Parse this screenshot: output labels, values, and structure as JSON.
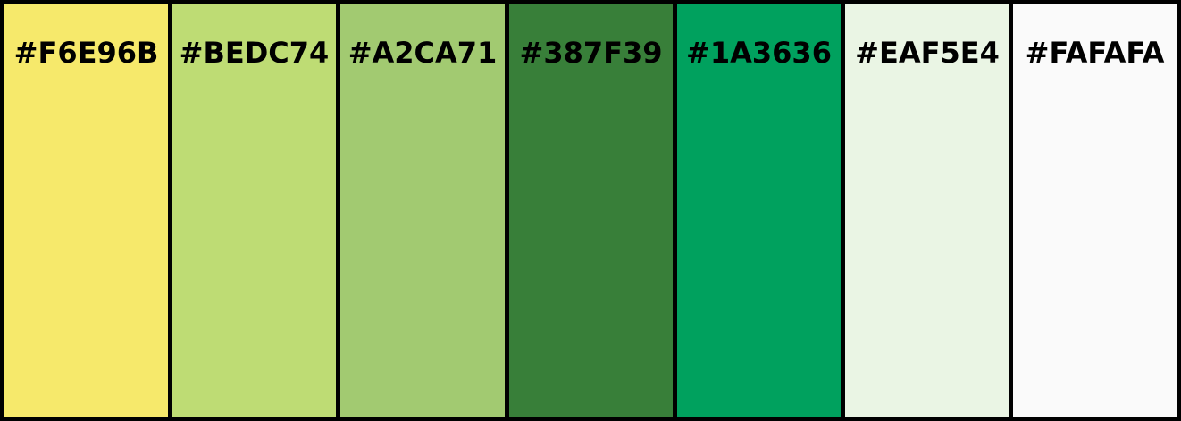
{
  "palette": {
    "swatches": [
      {
        "label": "#F6E96B",
        "color": "#F6E96B"
      },
      {
        "label": "#BEDC74",
        "color": "#BEDC74"
      },
      {
        "label": "#A2CA71",
        "color": "#A2CA71"
      },
      {
        "label": "#387F39",
        "color": "#387F39"
      },
      {
        "label": "#1A3636",
        "color": "#00A15E"
      },
      {
        "label": "#EAF5E4",
        "color": "#EAF5E4"
      },
      {
        "label": "#FAFAFA",
        "color": "#FAFAFA"
      }
    ]
  }
}
